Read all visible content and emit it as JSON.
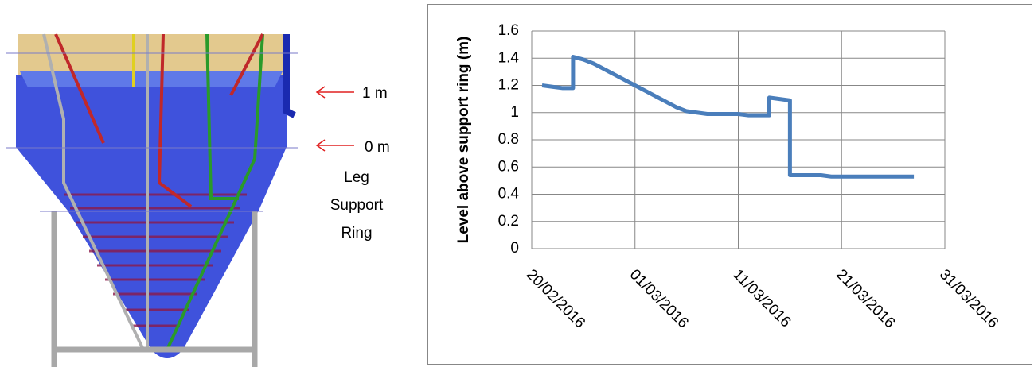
{
  "diagram": {
    "annotations": [
      "1 m",
      "0 m"
    ],
    "ring_label": [
      "Leg",
      "Support",
      "Ring"
    ]
  },
  "chart_data": {
    "type": "line",
    "y_label": "Level above support ring (m)",
    "x": [
      "21/02/2016",
      "22/02/2016",
      "23/02/2016",
      "24/02/2016",
      "24/02/2016",
      "25/02/2016",
      "26/02/2016",
      "27/02/2016",
      "28/02/2016",
      "29/02/2016",
      "01/03/2016",
      "02/03/2016",
      "03/03/2016",
      "04/03/2016",
      "05/03/2016",
      "06/03/2016",
      "07/03/2016",
      "08/03/2016",
      "09/03/2016",
      "10/03/2016",
      "11/03/2016",
      "12/03/2016",
      "13/03/2016",
      "14/03/2016",
      "14/03/2016",
      "15/03/2016",
      "16/03/2016",
      "16/03/2016",
      "17/03/2016",
      "18/03/2016",
      "19/03/2016",
      "20/03/2016",
      "21/03/2016",
      "22/03/2016",
      "23/03/2016",
      "24/03/2016",
      "25/03/2016",
      "26/03/2016",
      "27/03/2016",
      "28/03/2016"
    ],
    "values": [
      1.2,
      1.19,
      1.18,
      1.18,
      1.41,
      1.39,
      1.36,
      1.32,
      1.28,
      1.24,
      1.2,
      1.16,
      1.12,
      1.08,
      1.04,
      1.01,
      1.0,
      0.99,
      0.99,
      0.99,
      0.99,
      0.98,
      0.98,
      0.98,
      1.11,
      1.1,
      1.09,
      0.54,
      0.54,
      0.54,
      0.54,
      0.53,
      0.53,
      0.53,
      0.53,
      0.53,
      0.53,
      0.53,
      0.53,
      0.53
    ],
    "color": "#4a7ebb",
    "xlim": [
      "20/02/2016",
      "31/03/2016"
    ],
    "xticks": [
      "20/02/2016",
      "01/03/2016",
      "11/03/2016",
      "21/03/2016",
      "31/03/2016"
    ],
    "ylim": [
      0,
      1.6
    ],
    "yticks": [
      0,
      0.2,
      0.4,
      0.6,
      0.8,
      1,
      1.2,
      1.4,
      1.6
    ],
    "grid": true
  }
}
